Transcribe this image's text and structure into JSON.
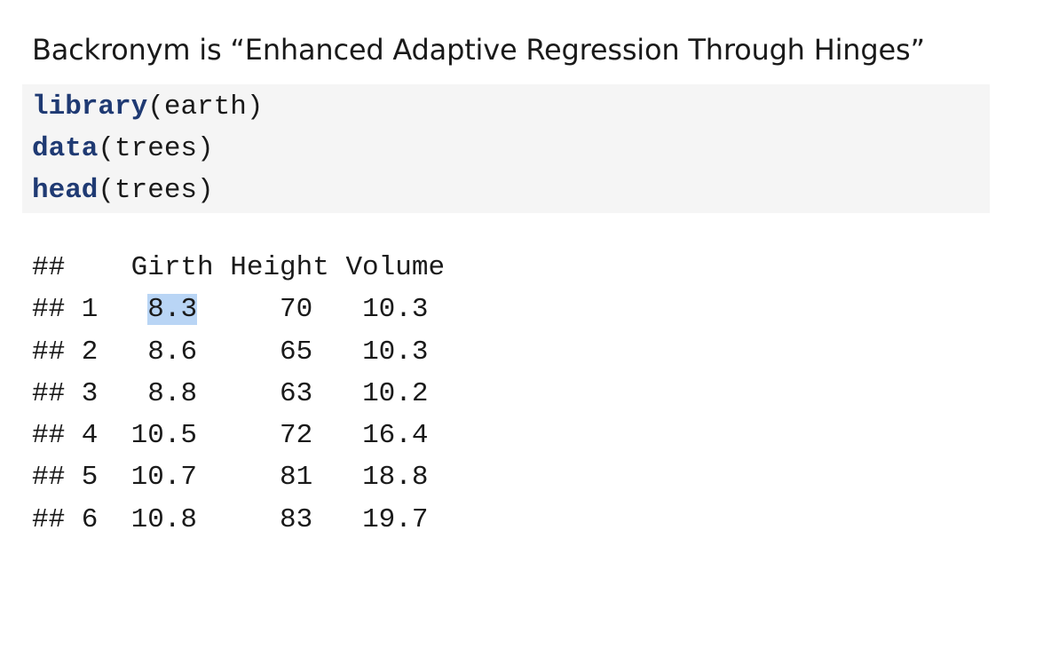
{
  "heading": "Backronym is “Enhanced Adaptive Regression Through Hinges”",
  "code": [
    {
      "fn": "library",
      "args": "(earth)"
    },
    {
      "fn": "data",
      "args": "(trees)"
    },
    {
      "fn": "head",
      "args": "(trees)"
    }
  ],
  "output": {
    "header": "##    Girth Height Volume",
    "rows": [
      {
        "prefix": "## 1   ",
        "girth": "8.3",
        "rest": "     70   10.3"
      },
      {
        "prefix": "## 2   ",
        "girth": "8.6",
        "rest": "     65   10.3"
      },
      {
        "prefix": "## 3   ",
        "girth": "8.8",
        "rest": "     63   10.2"
      },
      {
        "prefix": "## 4  ",
        "girth": "10.5",
        "rest": "     72   16.4"
      },
      {
        "prefix": "## 5  ",
        "girth": "10.7",
        "rest": "     81   18.8"
      },
      {
        "prefix": "## 6  ",
        "girth": "10.8",
        "rest": "     83   19.7"
      }
    ],
    "selected_cell": "8.3"
  },
  "colors": {
    "function_name": "#1f3a73",
    "code_background": "#f5f5f5",
    "selection": "#b9d5f5"
  }
}
